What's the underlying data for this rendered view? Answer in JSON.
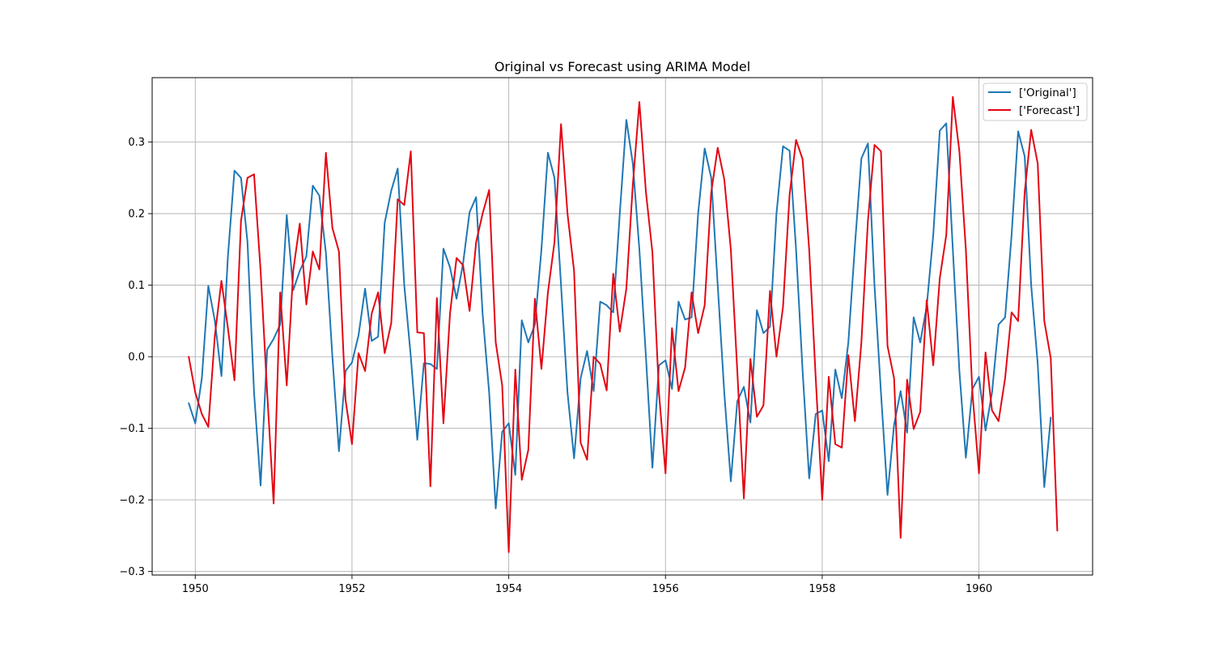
{
  "chart_data": {
    "type": "line",
    "title": "Original vs Forecast using ARIMA Model",
    "xlabel": "",
    "ylabel": "",
    "xlim": [
      1949.45,
      1961.45
    ],
    "ylim": [
      -0.305,
      0.39
    ],
    "x_ticks": [
      1950,
      1952,
      1954,
      1956,
      1958,
      1960
    ],
    "x_tick_labels": [
      "1950",
      "1952",
      "1954",
      "1956",
      "1958",
      "1960"
    ],
    "y_ticks": [
      -0.3,
      -0.2,
      -0.1,
      0.0,
      0.1,
      0.2,
      0.3
    ],
    "y_tick_labels": [
      "−0.3",
      "−0.2",
      "−0.1",
      "0.0",
      "0.1",
      "0.2",
      "0.3"
    ],
    "grid": true,
    "legend_position": "top-right",
    "x_start": 1949.917,
    "x_step": 0.08333,
    "series": [
      {
        "name": "['Original']",
        "color": "#1f77b4",
        "values": [
          -0.065,
          -0.093,
          -0.03,
          0.099,
          0.05,
          -0.027,
          0.14,
          0.26,
          0.25,
          0.16,
          -0.05,
          -0.18,
          0.01,
          0.025,
          0.045,
          0.198,
          0.093,
          0.12,
          0.14,
          0.239,
          0.225,
          0.145,
          0.0,
          -0.132,
          -0.02,
          -0.008,
          0.03,
          0.095,
          0.022,
          0.028,
          0.187,
          0.232,
          0.263,
          0.1,
          0.0,
          -0.116,
          -0.009,
          -0.01,
          -0.017,
          0.151,
          0.125,
          0.081,
          0.13,
          0.202,
          0.223,
          0.06,
          -0.05,
          -0.212,
          -0.105,
          -0.093,
          -0.165,
          0.051,
          0.02,
          0.045,
          0.15,
          0.285,
          0.25,
          0.1,
          -0.05,
          -0.142,
          -0.03,
          0.008,
          -0.048,
          0.077,
          0.072,
          0.062,
          0.2,
          0.331,
          0.27,
          0.15,
          0.0,
          -0.155,
          -0.012,
          -0.005,
          -0.045,
          0.077,
          0.052,
          0.055,
          0.2,
          0.291,
          0.25,
          0.1,
          -0.05,
          -0.174,
          -0.062,
          -0.042,
          -0.092,
          0.065,
          0.033,
          0.042,
          0.2,
          0.294,
          0.288,
          0.15,
          -0.02,
          -0.17,
          -0.08,
          -0.075,
          -0.146,
          -0.018,
          -0.058,
          0.02,
          0.155,
          0.277,
          0.298,
          0.1,
          -0.05,
          -0.193,
          -0.095,
          -0.048,
          -0.106,
          0.055,
          0.02,
          0.07,
          0.17,
          0.316,
          0.326,
          0.15,
          -0.02,
          -0.141,
          -0.045,
          -0.028,
          -0.103,
          -0.05,
          0.045,
          0.055,
          0.17,
          0.315,
          0.28,
          0.1,
          -0.01,
          -0.182,
          -0.085
        ]
      },
      {
        "name": "['Forecast']",
        "color": "#e30613",
        "values": [
          0.0,
          -0.05,
          -0.08,
          -0.098,
          0.03,
          0.106,
          0.04,
          -0.033,
          0.19,
          0.25,
          0.255,
          0.12,
          -0.05,
          -0.205,
          0.09,
          -0.04,
          0.12,
          0.186,
          0.073,
          0.147,
          0.122,
          0.285,
          0.18,
          0.147,
          -0.06,
          -0.122,
          0.005,
          -0.02,
          0.06,
          0.09,
          0.005,
          0.047,
          0.22,
          0.212,
          0.287,
          0.034,
          0.033,
          -0.181,
          0.082,
          -0.093,
          0.06,
          0.138,
          0.128,
          0.064,
          0.16,
          0.2,
          0.233,
          0.02,
          -0.04,
          -0.273,
          -0.018,
          -0.172,
          -0.13,
          0.081,
          -0.017,
          0.09,
          0.16,
          0.325,
          0.2,
          0.12,
          -0.12,
          -0.144,
          0.0,
          -0.01,
          -0.047,
          0.116,
          0.035,
          0.095,
          0.24,
          0.356,
          0.23,
          0.146,
          -0.05,
          -0.163,
          0.04,
          -0.048,
          -0.015,
          0.09,
          0.033,
          0.072,
          0.23,
          0.292,
          0.248,
          0.15,
          -0.02,
          -0.198,
          -0.003,
          -0.084,
          -0.068,
          0.092,
          0.0,
          0.07,
          0.226,
          0.303,
          0.276,
          0.15,
          -0.03,
          -0.2,
          -0.028,
          -0.122,
          -0.127,
          0.002,
          -0.09,
          0.02,
          0.19,
          0.296,
          0.287,
          0.015,
          -0.03,
          -0.253,
          -0.032,
          -0.101,
          -0.077,
          0.079,
          -0.012,
          0.11,
          0.17,
          0.363,
          0.287,
          0.15,
          -0.05,
          -0.163,
          0.006,
          -0.075,
          -0.09,
          -0.03,
          0.062,
          0.05,
          0.23,
          0.317,
          0.27,
          0.05,
          -0.002,
          -0.243
        ]
      }
    ]
  }
}
